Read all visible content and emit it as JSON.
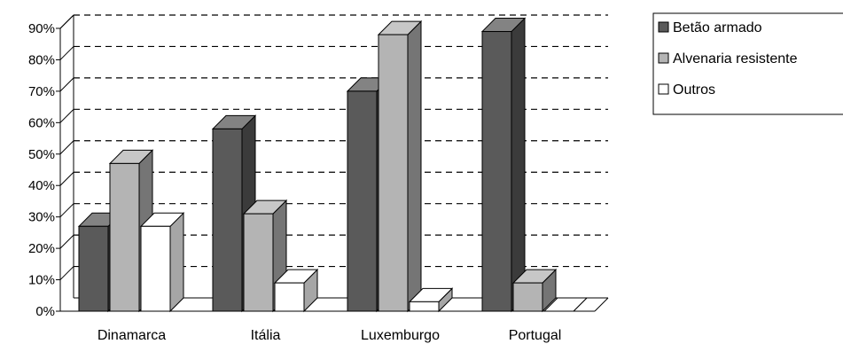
{
  "chart_data": {
    "type": "bar",
    "subtype": "3d-clustered-column",
    "categories": [
      "Dinamarca",
      "Itália",
      "Luxemburgo",
      "Portugal"
    ],
    "series": [
      {
        "name": "Betão armado",
        "values": [
          27,
          58,
          70,
          89
        ],
        "color": "#5a5a5a"
      },
      {
        "name": "Alvenaria resistente",
        "values": [
          47,
          31,
          88,
          9
        ],
        "color": "#b4b4b4"
      },
      {
        "name": "Outros",
        "values": [
          27,
          9,
          3,
          0
        ],
        "color": "#ffffff"
      }
    ],
    "y_ticks": [
      "0%",
      "10%",
      "20%",
      "30%",
      "40%",
      "50%",
      "60%",
      "70%",
      "80%",
      "90%"
    ],
    "ylim": [
      0,
      90
    ],
    "grid": "dashed-horizontal",
    "legend_position": "right",
    "title": "",
    "xlabel": "",
    "ylabel": ""
  }
}
